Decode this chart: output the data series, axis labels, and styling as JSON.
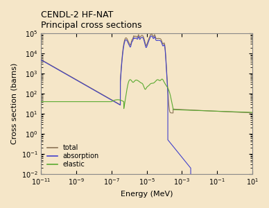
{
  "title_line1": "CENDL-2 HF-NAT",
  "title_line2": "Principal cross sections",
  "xlabel": "Energy (MeV)",
  "ylabel": "Cross section (barns)",
  "background_color": "#f5e6c8",
  "axes_facecolor": "#f5e6c8",
  "xlim_log": [
    -11,
    1
  ],
  "ylim_log": [
    -2,
    5
  ],
  "legend_labels": [
    "total",
    "absorption",
    "elastic"
  ],
  "legend_colors": [
    "#8B7355",
    "#4040cc",
    "#5aaa30"
  ],
  "title_fontsize": 9,
  "label_fontsize": 8,
  "tick_fontsize": 7,
  "legend_fontsize": 7
}
